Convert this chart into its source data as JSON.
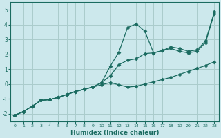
{
  "xlabel": "Humidex (Indice chaleur)",
  "bg_color": "#cce8ec",
  "grid_color": "#aacccc",
  "line_color": "#1a6b60",
  "marker": "D",
  "marker_size": 2.5,
  "xlim": [
    -0.5,
    23.5
  ],
  "ylim": [
    -2.5,
    5.5
  ],
  "xticks": [
    0,
    1,
    2,
    3,
    4,
    5,
    6,
    7,
    8,
    9,
    10,
    11,
    12,
    13,
    14,
    15,
    16,
    17,
    18,
    19,
    20,
    21,
    22,
    23
  ],
  "yticks": [
    -2,
    -1,
    0,
    1,
    2,
    3,
    4,
    5
  ],
  "line1_x": [
    0,
    1,
    2,
    3,
    4,
    5,
    6,
    7,
    8,
    9,
    10,
    11,
    12,
    13,
    14,
    15,
    16,
    17,
    18,
    19,
    20,
    21,
    22,
    23
  ],
  "line1_y": [
    -2.1,
    -1.85,
    -1.5,
    -1.1,
    -1.05,
    -0.9,
    -0.7,
    -0.5,
    -0.35,
    -0.2,
    0.1,
    1.2,
    2.15,
    3.8,
    4.05,
    3.55,
    2.1,
    2.25,
    2.5,
    2.4,
    2.2,
    2.3,
    2.9,
    4.85
  ],
  "line2_x": [
    0,
    1,
    2,
    3,
    4,
    5,
    6,
    7,
    8,
    9,
    10,
    11,
    12,
    13,
    14,
    15,
    16,
    17,
    18,
    19,
    20,
    21,
    22,
    23
  ],
  "line2_y": [
    -2.1,
    -1.85,
    -1.5,
    -1.1,
    -1.05,
    -0.9,
    -0.7,
    -0.5,
    -0.35,
    -0.2,
    0.1,
    0.55,
    1.3,
    1.6,
    1.7,
    2.05,
    2.1,
    2.25,
    2.4,
    2.2,
    2.1,
    2.2,
    2.8,
    4.75
  ],
  "line3_x": [
    0,
    1,
    2,
    3,
    4,
    5,
    6,
    7,
    8,
    9,
    10,
    11,
    12,
    13,
    14,
    15,
    16,
    17,
    18,
    19,
    20,
    21,
    22,
    23
  ],
  "line3_y": [
    -2.1,
    -1.85,
    -1.5,
    -1.1,
    -1.05,
    -0.9,
    -0.7,
    -0.5,
    -0.35,
    -0.2,
    -0.05,
    0.1,
    -0.05,
    -0.2,
    -0.15,
    0.0,
    0.15,
    0.3,
    0.45,
    0.65,
    0.85,
    1.05,
    1.25,
    1.5
  ]
}
